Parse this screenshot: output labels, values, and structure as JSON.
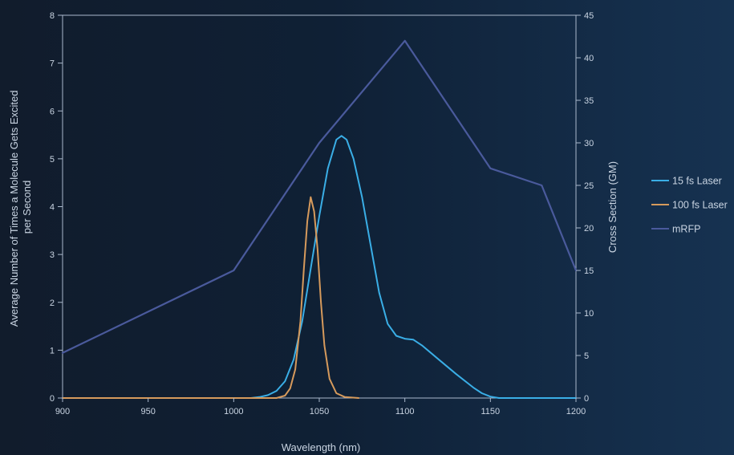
{
  "chart_data": {
    "type": "line",
    "title": "",
    "xlabel": "Wavelength (nm)",
    "ylabel_lines": [
      "Average Number of Times a Molecule Gets Excited",
      "per Second"
    ],
    "y2label": "Cross Section (GM)",
    "xlim": [
      900,
      1200
    ],
    "ylim": [
      0,
      8
    ],
    "y2lim": [
      0,
      45
    ],
    "x_ticks": [
      900,
      950,
      1000,
      1050,
      1100,
      1150,
      1200
    ],
    "y_ticks": [
      0,
      1,
      2,
      3,
      4,
      5,
      6,
      7,
      8
    ],
    "y2_ticks": [
      0,
      5,
      10,
      15,
      20,
      25,
      30,
      35,
      40,
      45
    ],
    "grid": false,
    "legend_position": "right",
    "series": [
      {
        "name": "15 fs Laser",
        "axis": "left",
        "color": "#3aaee6",
        "x": [
          900,
          1010,
          1015,
          1020,
          1025,
          1030,
          1035,
          1040,
          1045,
          1050,
          1055,
          1060,
          1063,
          1066,
          1070,
          1075,
          1080,
          1085,
          1090,
          1095,
          1100,
          1105,
          1110,
          1120,
          1130,
          1140,
          1145,
          1150,
          1155,
          1200
        ],
        "y": [
          0,
          0,
          0.02,
          0.06,
          0.15,
          0.35,
          0.8,
          1.6,
          2.7,
          3.8,
          4.8,
          5.4,
          5.48,
          5.4,
          5.0,
          4.2,
          3.2,
          2.2,
          1.55,
          1.3,
          1.24,
          1.22,
          1.1,
          0.8,
          0.5,
          0.22,
          0.1,
          0.03,
          0,
          0
        ]
      },
      {
        "name": "100 fs Laser",
        "axis": "left",
        "color": "#d69a5c",
        "x": [
          900,
          1025,
          1030,
          1033,
          1036,
          1039,
          1041,
          1043,
          1045,
          1047,
          1049,
          1051,
          1053,
          1056,
          1060,
          1065,
          1073
        ],
        "y": [
          0,
          0,
          0.05,
          0.2,
          0.6,
          1.6,
          2.7,
          3.7,
          4.2,
          3.9,
          3.1,
          2.0,
          1.1,
          0.4,
          0.1,
          0.02,
          0
        ]
      },
      {
        "name": "mRFP",
        "axis": "right",
        "color": "#4a5a9c",
        "x": [
          900,
          1000,
          1050,
          1100,
          1150,
          1180,
          1200
        ],
        "y": [
          5.3,
          15,
          30,
          42,
          27,
          25,
          15
        ]
      }
    ]
  }
}
